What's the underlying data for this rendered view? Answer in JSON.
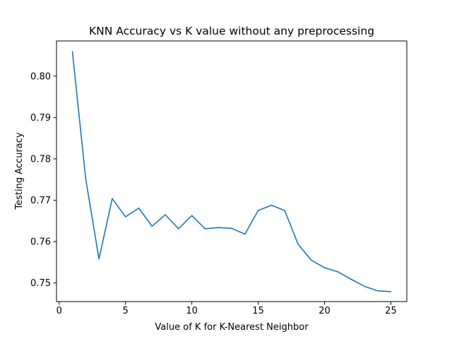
{
  "colors": {
    "series": "#1f77b4"
  },
  "chart_data": {
    "type": "line",
    "title": "KNN Accuracy vs K value without any preprocessing",
    "xlabel": "Value of K for K-Nearest Neighbor",
    "ylabel": "Testing Accuracy",
    "xlim": [
      -0.2,
      26.2
    ],
    "ylim": [
      0.7455,
      0.8085
    ],
    "xticks": [
      0,
      5,
      10,
      15,
      20,
      25
    ],
    "xtick_labels": [
      "0",
      "5",
      "10",
      "15",
      "20",
      "25"
    ],
    "yticks": [
      0.75,
      0.76,
      0.77,
      0.78,
      0.79,
      0.8
    ],
    "ytick_labels": [
      "0.75",
      "0.76",
      "0.77",
      "0.78",
      "0.79",
      "0.80"
    ],
    "grid": false,
    "series": [
      {
        "x": [
          1,
          2,
          3,
          4,
          5,
          6,
          7,
          8,
          9,
          10,
          11,
          12,
          13,
          14,
          15,
          16,
          17,
          18,
          19,
          20,
          21,
          22,
          23,
          24,
          25
        ],
        "y": [
          0.8059,
          0.7752,
          0.7558,
          0.7704,
          0.766,
          0.7681,
          0.7637,
          0.7665,
          0.7631,
          0.7663,
          0.7631,
          0.7634,
          0.7632,
          0.7618,
          0.7675,
          0.7688,
          0.7675,
          0.7594,
          0.7555,
          0.7537,
          0.7527,
          0.7509,
          0.7492,
          0.7481,
          0.7479
        ]
      }
    ]
  }
}
